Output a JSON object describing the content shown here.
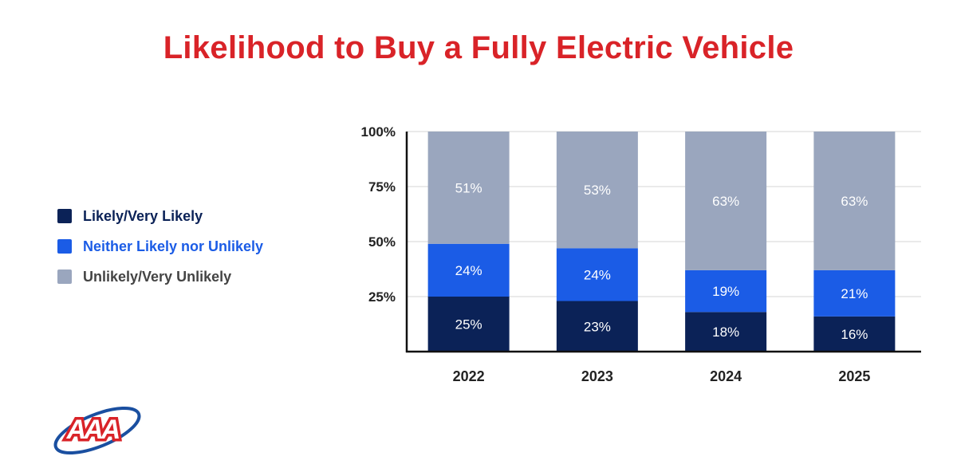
{
  "chart_data": {
    "type": "bar",
    "stacked": true,
    "title": "Likelihood to Buy a Fully Electric Vehicle",
    "categories": [
      "2022",
      "2023",
      "2024",
      "2025"
    ],
    "y_ticks": [
      "25%",
      "50%",
      "75%",
      "100%"
    ],
    "ylim": [
      0,
      100
    ],
    "legend_position": "left",
    "series": [
      {
        "name": "Likely/Very Likely",
        "color": "#0b2257",
        "values": [
          25,
          23,
          18,
          16
        ],
        "labels": [
          "25%",
          "23%",
          "18%",
          "16%"
        ]
      },
      {
        "name": "Neither Likely nor Unlikely",
        "color": "#1b5ce6",
        "values": [
          24,
          24,
          19,
          21
        ],
        "labels": [
          "24%",
          "24%",
          "19%",
          "21%"
        ]
      },
      {
        "name": "Unlikely/Very Unlikely",
        "color": "#9aa6be",
        "values": [
          51,
          53,
          63,
          63
        ],
        "labels": [
          "51%",
          "53%",
          "63%",
          "63%"
        ]
      }
    ]
  },
  "legend": {
    "items": [
      {
        "label": "Likely/Very Likely",
        "color": "#0b2257",
        "text_color": "#0b2257"
      },
      {
        "label": "Neither Likely nor Unlikely",
        "color": "#1b5ce6",
        "text_color": "#1b5ce6"
      },
      {
        "label": "Unlikely/Very Unlikely",
        "color": "#9aa6be",
        "text_color": "#444444"
      }
    ]
  },
  "logo": {
    "text": "AAA",
    "color": "#d92328",
    "swoosh_color": "#1a4fa0"
  }
}
